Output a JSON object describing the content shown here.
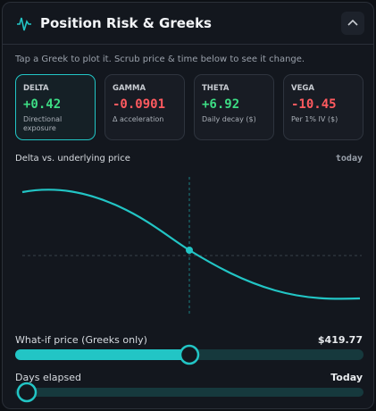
{
  "header": {
    "title": "Position Risk & Greeks"
  },
  "subtitle": "Tap a Greek to plot it. Scrub price & time below to see it change.",
  "greeks": [
    {
      "label": "DELTA",
      "value": "+0.42",
      "description": "Directional exposure"
    },
    {
      "label": "GAMMA",
      "value": "-0.0901",
      "description": "Δ acceleration"
    },
    {
      "label": "THETA",
      "value": "+6.92",
      "description": "Daily decay ($)"
    },
    {
      "label": "VEGA",
      "value": "-10.45",
      "description": "Per 1% IV ($)"
    }
  ],
  "plot": {
    "title": "Delta vs. underlying price",
    "time_label": "today"
  },
  "sliders": [
    {
      "label": "What-if price (Greeks only)",
      "value": "$419.77"
    },
    {
      "label": "Days elapsed",
      "value": "Today"
    }
  ]
}
